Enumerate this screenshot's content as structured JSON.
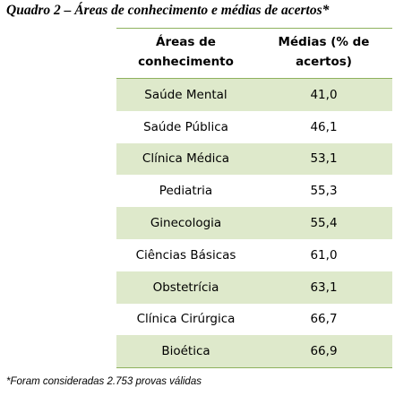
{
  "caption": "Quadro 2 – Áreas de conhecimento e médias de acertos*",
  "table": {
    "headers": [
      "Áreas de conhecimento",
      "Médias (% de acertos)"
    ],
    "rows": [
      {
        "area": "Saúde Mental",
        "media": "41,0"
      },
      {
        "area": "Saúde Pública",
        "media": "46,1"
      },
      {
        "area": "Clínica Médica",
        "media": "53,1"
      },
      {
        "area": "Pediatria",
        "media": "55,3"
      },
      {
        "area": "Ginecologia",
        "media": "55,4"
      },
      {
        "area": "Ciências Básicas",
        "media": "61,0"
      },
      {
        "area": "Obstetrícia",
        "media": "63,1"
      },
      {
        "area": "Clínica Cirúrgica",
        "media": "66,7"
      },
      {
        "area": "Bioética",
        "media": "66,9"
      }
    ]
  },
  "footnote": "*Foram consideradas 2.753 provas válidas",
  "colors": {
    "row_shade": "#dee9cb",
    "rule": "#8eb15e"
  }
}
